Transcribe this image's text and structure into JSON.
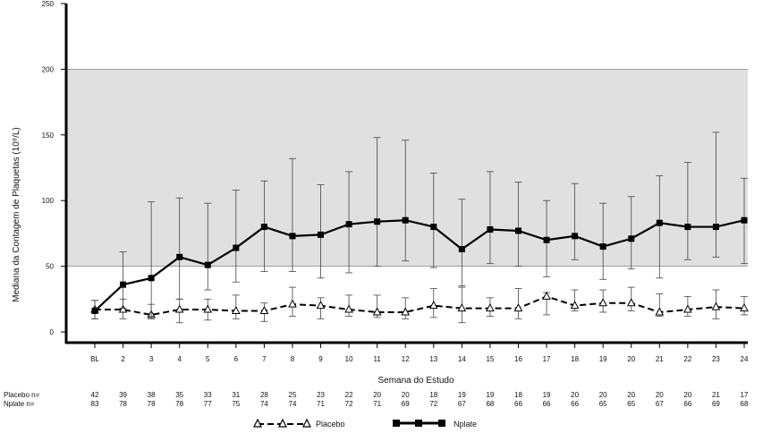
{
  "chart_data": {
    "type": "line",
    "title": "",
    "ylabel": "Mediana da Contagem de Plaquetas (10⁹/L)",
    "xlabel": "Semana do Estudo",
    "ylim": [
      0,
      250
    ],
    "yticks": [
      "0",
      "50",
      "100",
      "150",
      "200",
      "250"
    ],
    "shaded_band": [
      50,
      200
    ],
    "categories": [
      "BL",
      "2",
      "3",
      "4",
      "5",
      "6",
      "7",
      "8",
      "9",
      "10",
      "11",
      "12",
      "13",
      "14",
      "15",
      "16",
      "17",
      "18",
      "19",
      "20",
      "21",
      "22",
      "23",
      "24"
    ],
    "series": [
      {
        "name": "Placebo",
        "style": "dashed-triangle",
        "color": "#000000",
        "values": [
          17,
          17,
          13,
          17,
          17,
          16,
          16,
          21,
          20,
          17,
          15,
          15,
          20,
          18,
          18,
          18,
          27,
          20,
          22,
          22,
          15,
          17,
          19,
          18
        ],
        "err_low": [
          10,
          10,
          10,
          7,
          9,
          10,
          8,
          12,
          10,
          12,
          11,
          10,
          11,
          7,
          12,
          10,
          13,
          16,
          15,
          16,
          12,
          12,
          10,
          13
        ],
        "err_high": [
          24,
          25,
          21,
          25,
          25,
          28,
          22,
          34,
          26,
          28,
          28,
          26,
          33,
          34,
          26,
          33,
          30,
          32,
          32,
          34,
          29,
          27,
          32,
          27
        ]
      },
      {
        "name": "Nplate",
        "style": "solid-square",
        "color": "#000000",
        "values": [
          16,
          36,
          41,
          57,
          51,
          64,
          80,
          73,
          74,
          82,
          84,
          85,
          80,
          63,
          78,
          77,
          70,
          73,
          65,
          71,
          83,
          80,
          80,
          85
        ],
        "err_low": [
          10,
          18,
          12,
          25,
          32,
          38,
          46,
          46,
          41,
          45,
          50,
          54,
          49,
          35,
          52,
          50,
          42,
          55,
          40,
          48,
          41,
          55,
          57,
          52
        ],
        "err_high": [
          24,
          61,
          99,
          102,
          98,
          108,
          115,
          132,
          112,
          122,
          148,
          146,
          121,
          101,
          122,
          114,
          100,
          113,
          98,
          103,
          119,
          129,
          152,
          117
        ]
      }
    ],
    "n_table": {
      "placebo_label": "Placebo n=",
      "nplate_label": "Nplate n=",
      "placebo": [
        "42",
        "39",
        "38",
        "35",
        "33",
        "31",
        "28",
        "25",
        "23",
        "22",
        "20",
        "20",
        "18",
        "19",
        "19",
        "18",
        "19",
        "20",
        "20",
        "20",
        "20",
        "20",
        "21",
        "17"
      ],
      "nplate": [
        "83",
        "78",
        "78",
        "78",
        "77",
        "75",
        "74",
        "74",
        "71",
        "72",
        "71",
        "69",
        "72",
        "67",
        "68",
        "66",
        "66",
        "66",
        "65",
        "65",
        "67",
        "66",
        "69",
        "68"
      ]
    },
    "legend": {
      "placement": "bottom",
      "items": [
        "Placebo",
        "Nplate"
      ]
    },
    "grid": false
  }
}
